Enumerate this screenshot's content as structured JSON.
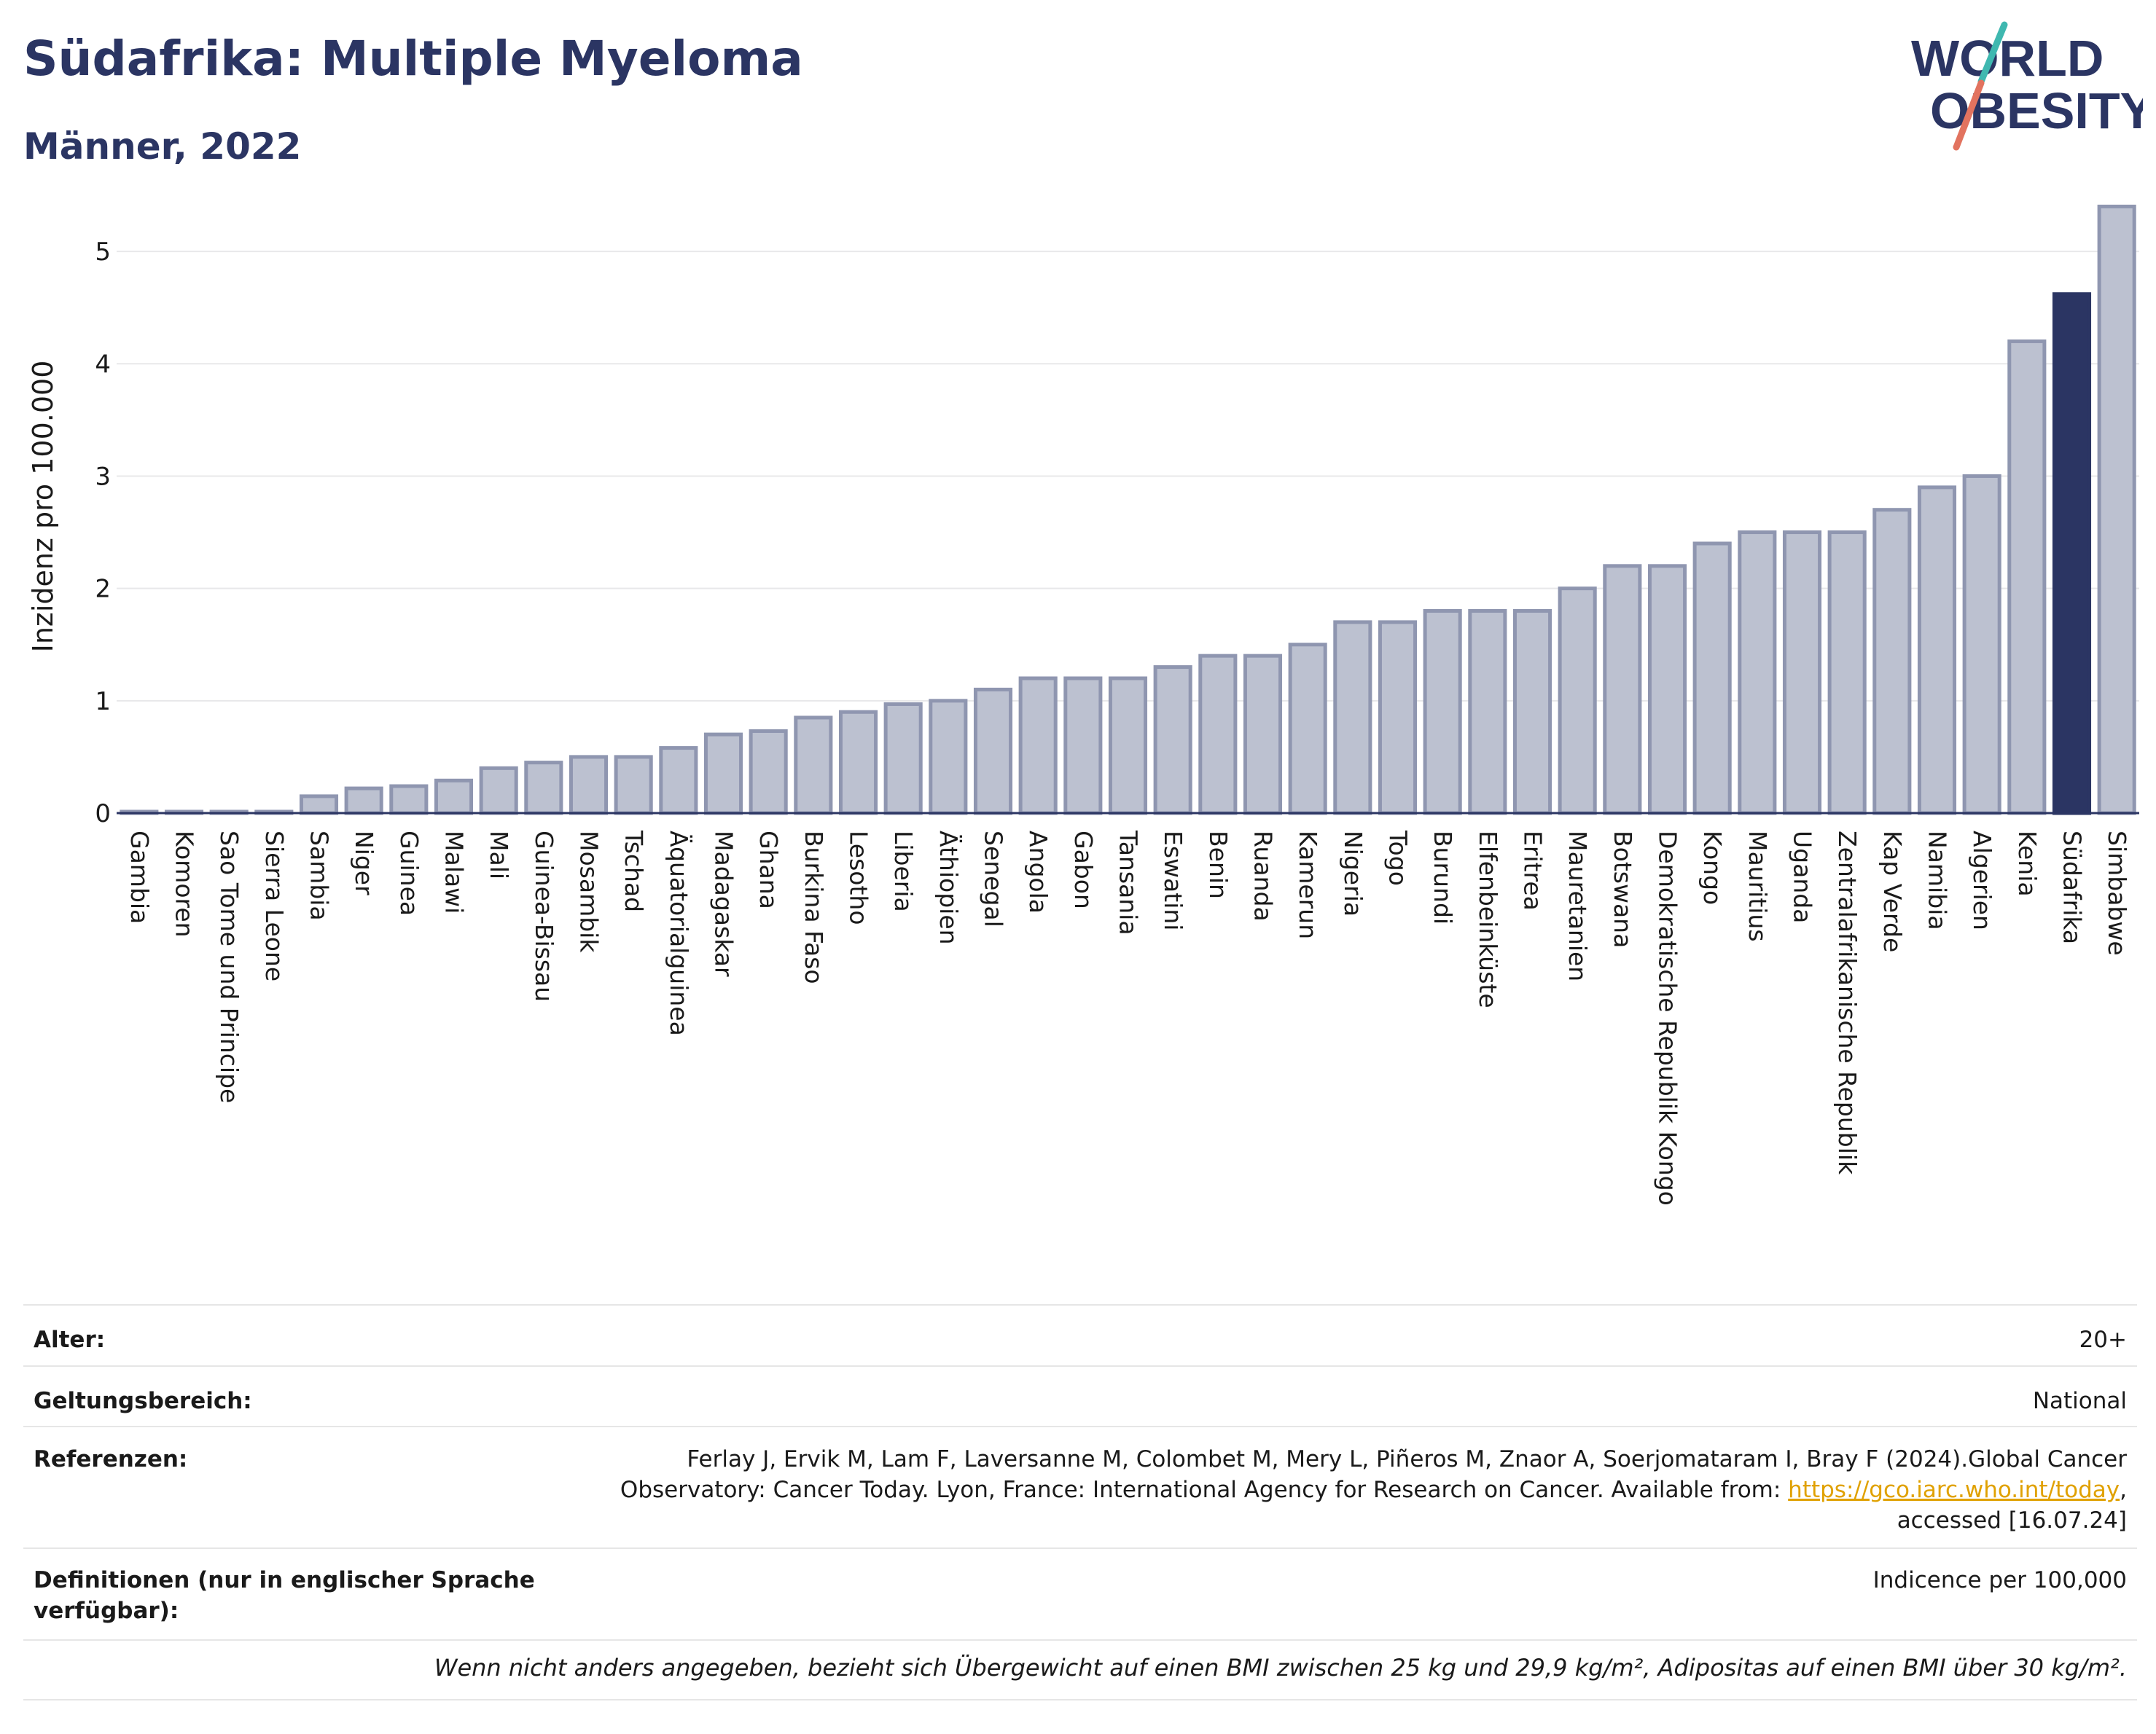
{
  "header": {
    "title": "Südafrika: Multiple Myeloma",
    "subtitle": "Männer, 2022",
    "logo_line1": "WORLD",
    "logo_line2": "OBESITY"
  },
  "colors": {
    "highlight": "#2b3563",
    "bar_fill": "#bcc1d0",
    "bar_stroke": "#8f96b0",
    "grid": "#e8e8ea",
    "logo_teal": "#3fb8b0",
    "logo_coral": "#e2735f"
  },
  "chart_data": {
    "type": "bar",
    "title": "Südafrika: Multiple Myeloma",
    "subtitle": "Männer, 2022",
    "ylabel": "Inzidenz pro 100.000",
    "xlabel": "",
    "ylim": [
      0,
      5.5
    ],
    "yticks": [
      0,
      1,
      2,
      3,
      4,
      5
    ],
    "grid": true,
    "highlight": "Südafrika",
    "categories": [
      "Gambia",
      "Komoren",
      "Sao Tome und Principe",
      "Sierra Leone",
      "Sambia",
      "Niger",
      "Guinea",
      "Malawi",
      "Mali",
      "Guinea-Bissau",
      "Mosambik",
      "Tschad",
      "Äquatorialguinea",
      "Madagaskar",
      "Ghana",
      "Burkina Faso",
      "Lesotho",
      "Liberia",
      "Äthiopien",
      "Senegal",
      "Angola",
      "Gabon",
      "Tansania",
      "Eswatini",
      "Benin",
      "Ruanda",
      "Kamerun",
      "Nigeria",
      "Togo",
      "Burundi",
      "Elfenbeinküste",
      "Eritrea",
      "Mauretanien",
      "Botswana",
      "Demokratische Republik Kongo",
      "Kongo",
      "Mauritius",
      "Uganda",
      "Zentralafrikanische Republik",
      "Kap Verde",
      "Namibia",
      "Algerien",
      "Kenia",
      "Südafrika",
      "Simbabwe"
    ],
    "values": [
      0.0,
      0.0,
      0.0,
      0.0,
      0.15,
      0.22,
      0.24,
      0.29,
      0.4,
      0.45,
      0.5,
      0.5,
      0.58,
      0.7,
      0.73,
      0.85,
      0.9,
      0.97,
      1.0,
      1.1,
      1.2,
      1.2,
      1.2,
      1.3,
      1.4,
      1.4,
      1.5,
      1.7,
      1.7,
      1.8,
      1.8,
      1.8,
      2.0,
      2.2,
      2.2,
      2.4,
      2.5,
      2.5,
      2.5,
      2.7,
      2.9,
      3.0,
      4.2,
      4.62,
      5.4
    ]
  },
  "info": {
    "age_label": "Alter:",
    "age_value": "20+",
    "scope_label": "Geltungsbereich:",
    "scope_value": "National",
    "ref_label": "Referenzen:",
    "ref_line1": "Ferlay J, Ervik M, Lam F, Laversanne M, Colombet M, Mery L, Piñeros M, Znaor A, Soerjomataram I, Bray F (2024).Global Cancer",
    "ref_line2_pre": "Observatory: Cancer Today. Lyon, France: International Agency for Research on Cancer. Available from: ",
    "ref_link": "https://gco.iarc.who.int/today",
    "ref_line2_post": ",",
    "ref_line3": "accessed [16.07.24]",
    "def_label_line1": "Definitionen (nur in englischer Sprache",
    "def_label_line2": "verfügbar):",
    "def_value": "Indicence per 100,000",
    "footnote": "Wenn nicht anders angegeben, bezieht sich Übergewicht auf einen BMI zwischen 25 kg und 29,9 kg/m², Adipositas auf einen BMI über 30 kg/m²."
  }
}
